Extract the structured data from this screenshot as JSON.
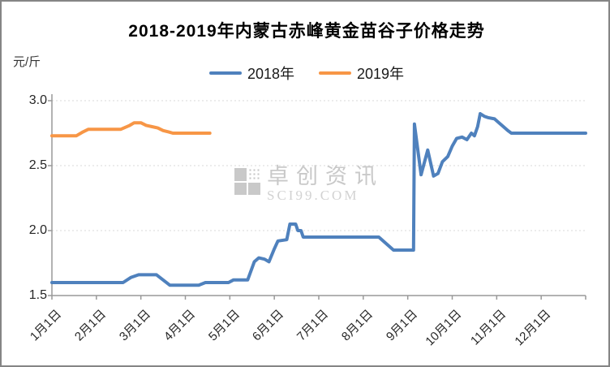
{
  "frame": {
    "background": "#ffffff",
    "border_color": "#858585"
  },
  "watermark": {
    "name": "卓创资讯",
    "domain": "SCI99.COM"
  },
  "colors": {
    "series_2018": "#4F81BD",
    "series_2019": "#F79646",
    "gridline": "#d9d9d9",
    "axis": "#999999",
    "tick_label": "#262626",
    "watermark": "#c9c9c9"
  },
  "chart_data": {
    "type": "line",
    "title": "2018-2019年内蒙古赤峰黄金苗谷子价格走势",
    "ylabel": "元/斤",
    "xlabel": "",
    "ylim": [
      1.5,
      3.0
    ],
    "y_ticks": [
      3.0,
      2.5,
      2.0,
      1.5
    ],
    "grid": true,
    "legend_position": "top-center",
    "x_unit": "month index: 0 = 1月1日, 11 = 12月1日, 12 = year end",
    "categories": [
      "1月1日",
      "2月1日",
      "3月1日",
      "4月1日",
      "5月1日",
      "6月1日",
      "7月1日",
      "8月1日",
      "9月1日",
      "10月1日",
      "11月1日",
      "12月1日"
    ],
    "series": [
      {
        "name": "2018年",
        "color": "#4F81BD",
        "points": [
          [
            0,
            1.6
          ],
          [
            1.6,
            1.6
          ],
          [
            1.78,
            1.64
          ],
          [
            1.95,
            1.66
          ],
          [
            2.35,
            1.66
          ],
          [
            2.5,
            1.62
          ],
          [
            2.65,
            1.58
          ],
          [
            3.3,
            1.58
          ],
          [
            3.45,
            1.6
          ],
          [
            3.97,
            1.6
          ],
          [
            4.08,
            1.62
          ],
          [
            4.4,
            1.62
          ],
          [
            4.55,
            1.76
          ],
          [
            4.65,
            1.79
          ],
          [
            4.78,
            1.78
          ],
          [
            4.88,
            1.76
          ],
          [
            5.0,
            1.86
          ],
          [
            5.08,
            1.92
          ],
          [
            5.28,
            1.93
          ],
          [
            5.35,
            2.05
          ],
          [
            5.48,
            2.05
          ],
          [
            5.53,
            2.0
          ],
          [
            5.6,
            2.0
          ],
          [
            5.65,
            1.95
          ],
          [
            7.35,
            1.95
          ],
          [
            7.68,
            1.85
          ],
          [
            8.13,
            1.85
          ],
          [
            8.15,
            2.82
          ],
          [
            8.3,
            2.43
          ],
          [
            8.45,
            2.62
          ],
          [
            8.58,
            2.42
          ],
          [
            8.68,
            2.44
          ],
          [
            8.78,
            2.53
          ],
          [
            8.9,
            2.57
          ],
          [
            9.0,
            2.65
          ],
          [
            9.1,
            2.71
          ],
          [
            9.22,
            2.72
          ],
          [
            9.33,
            2.7
          ],
          [
            9.43,
            2.75
          ],
          [
            9.5,
            2.73
          ],
          [
            9.57,
            2.8
          ],
          [
            9.63,
            2.9
          ],
          [
            9.72,
            2.88
          ],
          [
            9.8,
            2.87
          ],
          [
            9.95,
            2.86
          ],
          [
            10.05,
            2.83
          ],
          [
            10.15,
            2.8
          ],
          [
            10.25,
            2.77
          ],
          [
            10.33,
            2.75
          ],
          [
            12,
            2.75
          ]
        ]
      },
      {
        "name": "2019年",
        "color": "#F79646",
        "points": [
          [
            0,
            2.73
          ],
          [
            0.55,
            2.73
          ],
          [
            0.7,
            2.76
          ],
          [
            0.82,
            2.78
          ],
          [
            1.55,
            2.78
          ],
          [
            1.75,
            2.81
          ],
          [
            1.85,
            2.83
          ],
          [
            2.0,
            2.83
          ],
          [
            2.12,
            2.81
          ],
          [
            2.25,
            2.8
          ],
          [
            2.38,
            2.79
          ],
          [
            2.5,
            2.77
          ],
          [
            2.62,
            2.76
          ],
          [
            2.72,
            2.75
          ],
          [
            3.55,
            2.75
          ]
        ]
      }
    ]
  }
}
